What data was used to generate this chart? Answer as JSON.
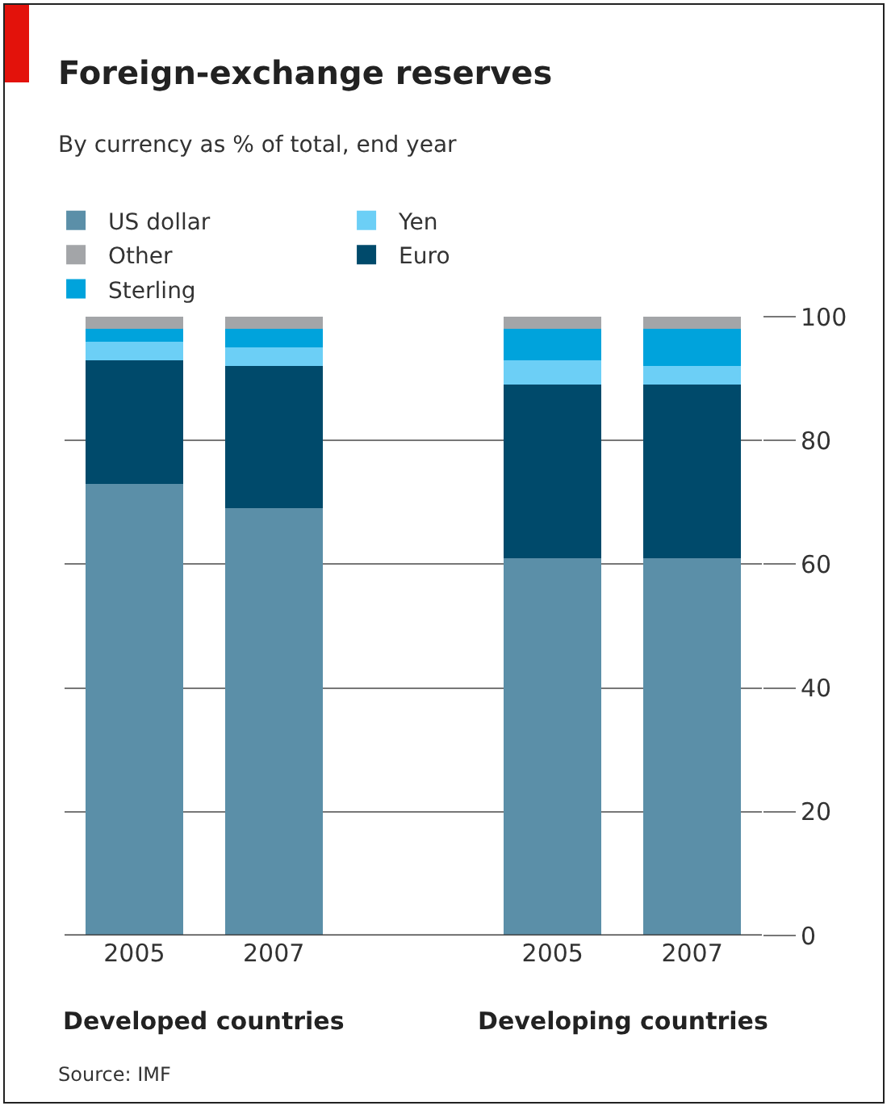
{
  "chart_data": {
    "type": "bar",
    "stacked": true,
    "title": "Foreign-exchange reserves",
    "subtitle": "By currency as % of total, end year",
    "categories": [
      "2005",
      "2007",
      null,
      "2005",
      "2007"
    ],
    "series": [
      {
        "name": "US dollar",
        "color": "#5b8fa8",
        "values": [
          73,
          69,
          null,
          61,
          61
        ]
      },
      {
        "name": "Euro",
        "color": "#004a6b",
        "values": [
          20,
          23,
          null,
          28,
          28
        ]
      },
      {
        "name": "Yen",
        "color": "#6ccff6",
        "values": [
          3,
          3,
          null,
          4,
          3
        ]
      },
      {
        "name": "Sterling",
        "color": "#00a3dc",
        "values": [
          2,
          3,
          null,
          5,
          6
        ]
      },
      {
        "name": "Other",
        "color": "#a3a5a8",
        "values": [
          2,
          2,
          null,
          2,
          2
        ]
      }
    ],
    "ylim": [
      0,
      100
    ],
    "yticks": [
      0,
      20,
      40,
      60,
      80,
      100
    ],
    "grid": "y",
    "legend": "top",
    "annotations": [
      "Developed countries",
      "Developing countries",
      "Source: IMF"
    ]
  }
}
